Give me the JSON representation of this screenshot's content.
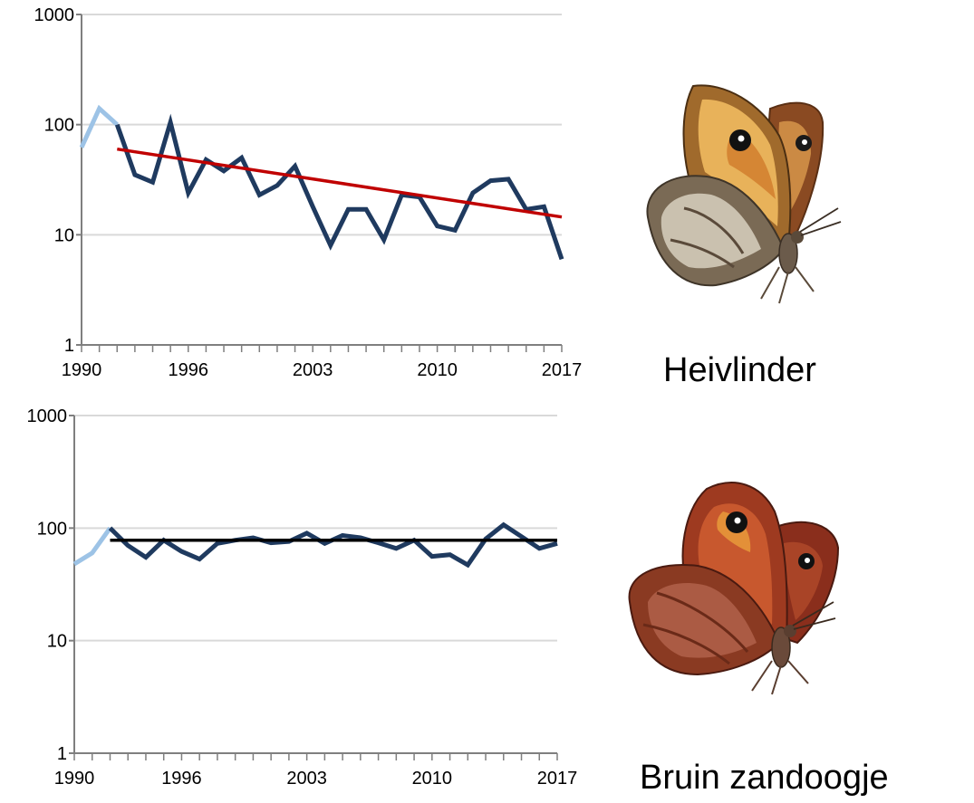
{
  "chart_data": [
    {
      "type": "line",
      "yscale": "log",
      "ylim": [
        1,
        1000
      ],
      "xlim": [
        1990,
        2017
      ],
      "ytick_labels": [
        "1000",
        "100",
        "10",
        "1"
      ],
      "xtick_labels": [
        "1990",
        "1996",
        "2003",
        "2010",
        "2017"
      ],
      "grid": true,
      "series": [
        {
          "role": "early-years",
          "color": "#9dc3e6",
          "x": [
            1990,
            1991,
            1992
          ],
          "y": [
            62,
            140,
            100
          ]
        },
        {
          "role": "index",
          "color": "#1f3a5f",
          "x": [
            1992,
            1993,
            1994,
            1995,
            1996,
            1997,
            1998,
            1999,
            2000,
            2001,
            2002,
            2003,
            2004,
            2005,
            2006,
            2007,
            2008,
            2009,
            2010,
            2011,
            2012,
            2013,
            2014,
            2015,
            2016,
            2017
          ],
          "y": [
            100,
            35,
            30,
            105,
            24,
            48,
            38,
            50,
            23,
            28,
            42,
            18,
            8,
            17,
            17,
            9,
            23,
            22,
            12,
            11,
            24,
            31,
            32,
            17,
            18,
            6
          ]
        },
        {
          "role": "trend",
          "color": "#c00000",
          "x": [
            1992,
            2017
          ],
          "y": [
            60,
            14.5
          ]
        }
      ]
    },
    {
      "type": "line",
      "yscale": "log",
      "ylim": [
        1,
        1000
      ],
      "xlim": [
        1990,
        2017
      ],
      "ytick_labels": [
        "1000",
        "100",
        "10",
        "1"
      ],
      "xtick_labels": [
        "1990",
        "1996",
        "2003",
        "2010",
        "2017"
      ],
      "grid": true,
      "series": [
        {
          "role": "early-years",
          "color": "#9dc3e6",
          "x": [
            1990,
            1991,
            1992
          ],
          "y": [
            48,
            60,
            100
          ]
        },
        {
          "role": "index",
          "color": "#1f3a5f",
          "x": [
            1992,
            1993,
            1994,
            1995,
            1996,
            1997,
            1998,
            1999,
            2000,
            2001,
            2002,
            2003,
            2004,
            2005,
            2006,
            2007,
            2008,
            2009,
            2010,
            2011,
            2012,
            2013,
            2014,
            2015,
            2016,
            2017
          ],
          "y": [
            100,
            70,
            55,
            78,
            62,
            53,
            73,
            78,
            82,
            74,
            76,
            90,
            73,
            86,
            82,
            74,
            66,
            78,
            56,
            58,
            47,
            80,
            107,
            84,
            66,
            73
          ]
        },
        {
          "role": "trend",
          "color": "#000000",
          "x": [
            1992,
            2017
          ],
          "y": [
            78,
            78
          ]
        }
      ]
    }
  ],
  "species": [
    {
      "label": "Heivlinder",
      "icon": "grayling-butterfly-icon"
    },
    {
      "label": "Bruin zandoogje",
      "icon": "meadow-brown-butterfly-icon"
    }
  ]
}
